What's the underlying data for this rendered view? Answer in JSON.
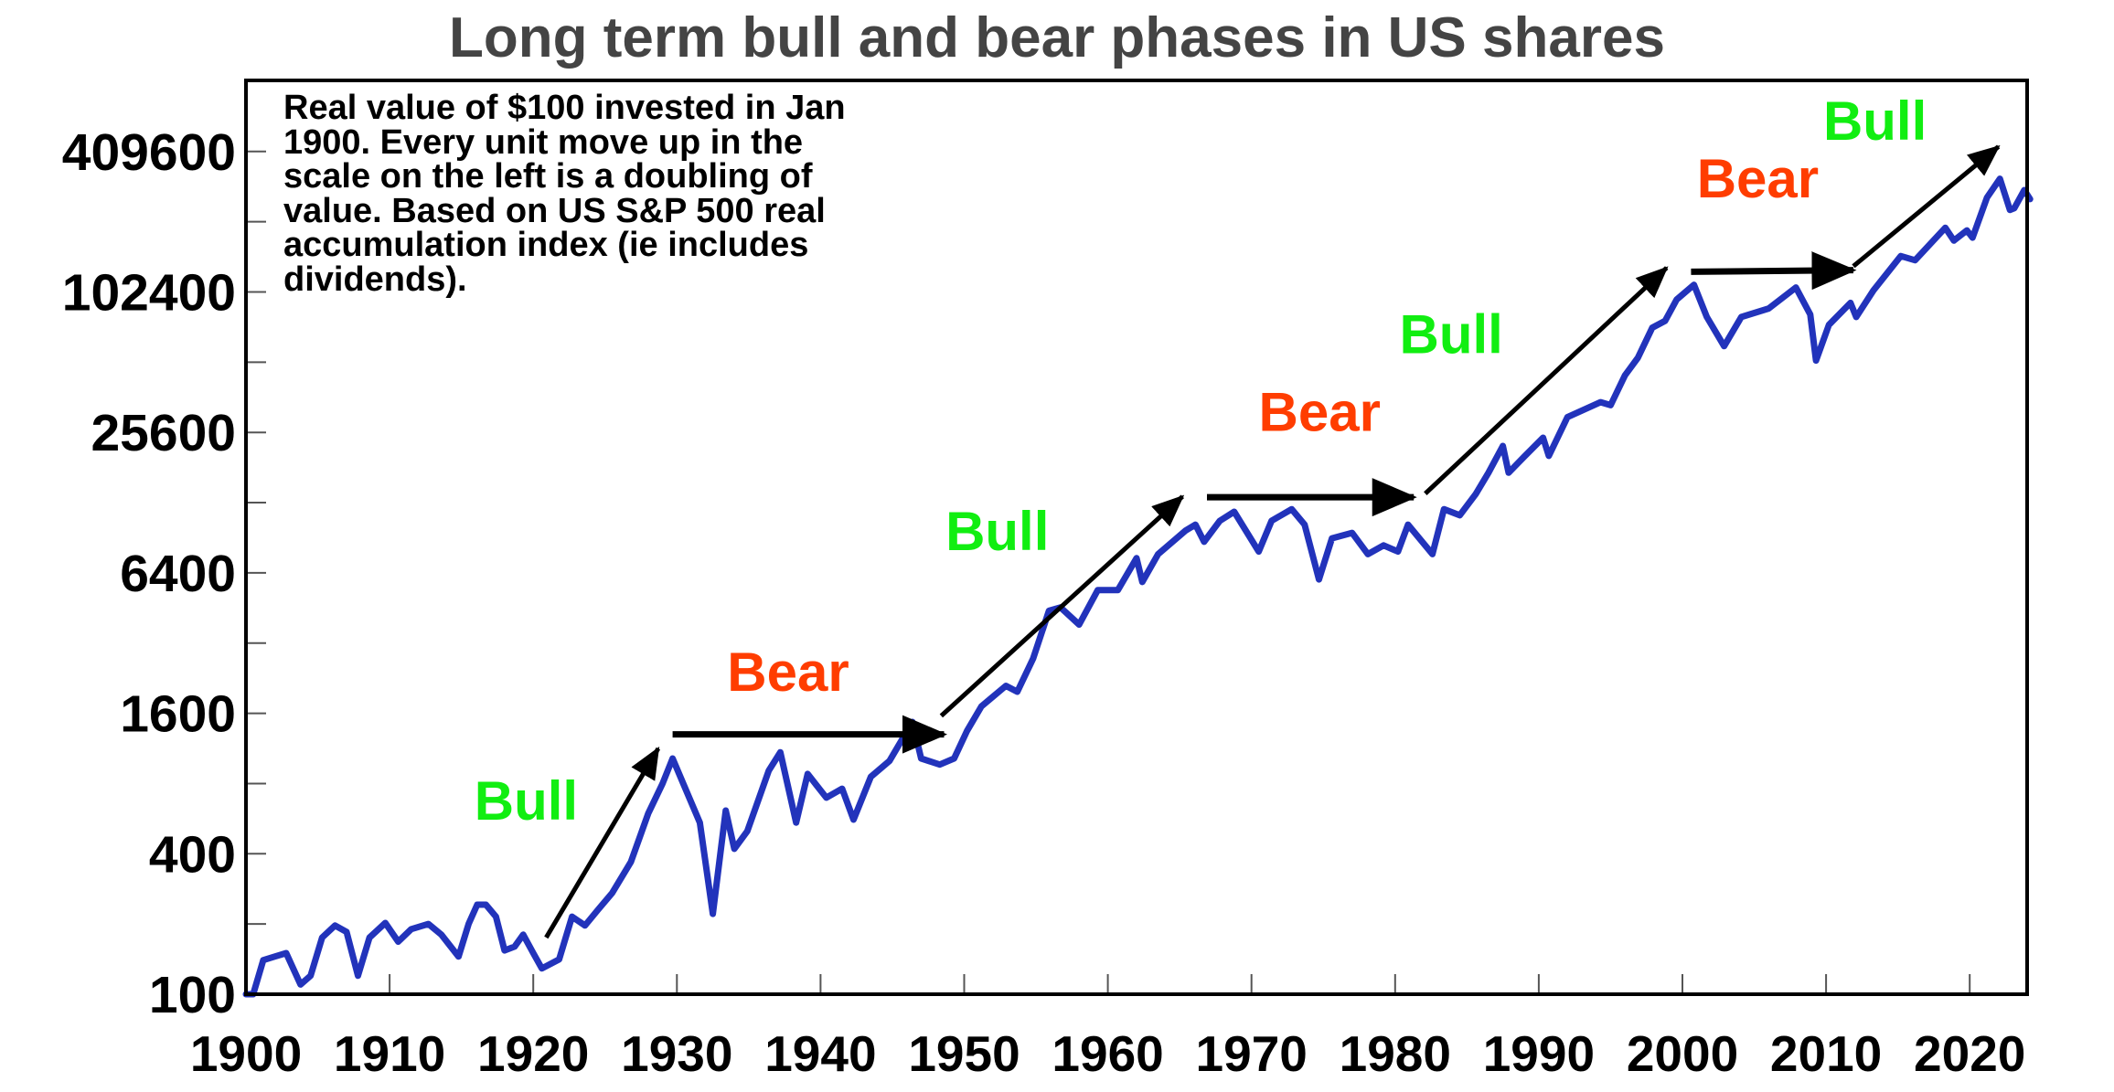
{
  "chart_data": {
    "type": "line",
    "title": "Long term bull and bear phases in US shares",
    "annotation": [
      "Real value of $100 invested in Jan",
      "1900. Every unit move up in the",
      "scale on the left is a doubling of",
      "value. Based on US S&P 500 real",
      "accumulation index (ie includes",
      "dividends)."
    ],
    "xlabel": "",
    "ylabel": "",
    "yscale": "log2",
    "xlim": [
      1900,
      2024.3
    ],
    "ylim": [
      100,
      819200
    ],
    "grid": false,
    "legend": null,
    "x_ticks": [
      "1900",
      "1910",
      "1920",
      "1930",
      "1940",
      "1950",
      "1960",
      "1970",
      "1980",
      "1990",
      "2000",
      "2010",
      "2020"
    ],
    "y_ticks_labeled": [
      "100",
      "400",
      "1600",
      "6400",
      "25600",
      "102400",
      "409600"
    ],
    "y_ticks_minor": [
      200,
      800,
      3200,
      12800,
      51200,
      204800
    ],
    "series": [
      {
        "name": "Real value of $100 invested in Jan 1900 (S&P 500 real accumulation index)",
        "color": "#2233bb",
        "x": [
          1900.0,
          1900.5,
          1901.2,
          1902.0,
          1902.8,
          1903.8,
          1904.5,
          1905.3,
          1906.2,
          1907.0,
          1907.8,
          1908.6,
          1909.7,
          1910.6,
          1911.5,
          1912.7,
          1913.6,
          1914.8,
          1915.5,
          1916.1,
          1916.7,
          1917.4,
          1918.0,
          1918.7,
          1919.3,
          1920.0,
          1920.6,
          1921.8,
          1922.7,
          1923.6,
          1924.5,
          1925.5,
          1926.8,
          1928.0,
          1929.0,
          1929.7,
          1930.5,
          1931.6,
          1932.5,
          1933.4,
          1934.0,
          1934.9,
          1936.4,
          1937.2,
          1938.3,
          1939.1,
          1940.4,
          1941.5,
          1942.3,
          1943.5,
          1944.8,
          1946.4,
          1947.0,
          1948.3,
          1949.3,
          1950.2,
          1951.2,
          1952.9,
          1953.7,
          1954.8,
          1955.9,
          1956.7,
          1958.0,
          1959.3,
          1960.7,
          1962.0,
          1962.4,
          1963.5,
          1965.4,
          1966.1,
          1966.7,
          1967.8,
          1968.8,
          1970.5,
          1971.4,
          1972.8,
          1973.7,
          1974.7,
          1975.6,
          1977.0,
          1978.1,
          1979.2,
          1980.2,
          1980.9,
          1982.6,
          1983.4,
          1984.5,
          1985.6,
          1986.5,
          1987.5,
          1987.9,
          1989.0,
          1990.3,
          1990.7,
          1992.0,
          1994.3,
          1995.0,
          1996.0,
          1996.9,
          1997.9,
          1998.8,
          1999.6,
          2000.8,
          2001.7,
          2002.9,
          2004.1,
          2006.0,
          2007.9,
          2008.9,
          2009.3,
          2010.2,
          2011.7,
          2012.1,
          2013.3,
          2015.2,
          2016.2,
          2018.3,
          2018.9,
          2019.8,
          2020.2,
          2021.2,
          2022.1,
          2022.8,
          2023.1,
          2023.8,
          2024.2
        ],
        "values": [
          100,
          98,
          140,
          145,
          150,
          110,
          120,
          175,
          197,
          185,
          120,
          175,
          202,
          168,
          190,
          200,
          180,
          145,
          200,
          242,
          242,
          215,
          154,
          160,
          180,
          150,
          129,
          141,
          215,
          197,
          230,
          272,
          369,
          595,
          800,
          1025,
          783,
          544,
          221,
          613,
          420,
          500,
          910,
          1090,
          544,
          880,
          696,
          760,
          560,
          855,
          1000,
          1470,
          1025,
          965,
          1025,
          1345,
          1715,
          2100,
          1980,
          2750,
          4400,
          4550,
          3840,
          5400,
          5400,
          7400,
          5850,
          7700,
          9700,
          10300,
          8700,
          10700,
          11700,
          7900,
          10700,
          12000,
          10300,
          6000,
          9000,
          9500,
          7700,
          8400,
          7900,
          10300,
          7700,
          12000,
          11300,
          13900,
          17200,
          22400,
          17200,
          20200,
          24300,
          20300,
          29800,
          34500,
          33500,
          45000,
          53500,
          72000,
          77000,
          95000,
          110000,
          80000,
          60000,
          80000,
          87000,
          107000,
          82000,
          52000,
          74000,
          92000,
          80000,
          104000,
          146000,
          140000,
          193000,
          170000,
          188000,
          175000,
          260000,
          313000,
          230000,
          234000,
          280000,
          256000
        ]
      }
    ],
    "phases": [
      {
        "label": "Bull",
        "type": "bull",
        "start_year": 1920.9,
        "end_year": 1928.7,
        "arrow_from": [
          1920.9,
          175
        ],
        "arrow_to": [
          1928.7,
          1130
        ],
        "label_pos": [
          1915.9,
          560
        ]
      },
      {
        "label": "Bear",
        "type": "bear",
        "start_year": 1929.7,
        "end_year": 1948.6,
        "arrow_from": [
          1929.7,
          1300
        ],
        "arrow_to": [
          1948.6,
          1300
        ],
        "label_pos": [
          1933.5,
          2000
        ]
      },
      {
        "label": "Bull",
        "type": "bull",
        "start_year": 1948.4,
        "end_year": 1965.2,
        "arrow_from": [
          1948.4,
          1560
        ],
        "arrow_to": [
          1965.2,
          13600
        ],
        "label_pos": [
          1948.7,
          8000
        ]
      },
      {
        "label": "Bear",
        "type": "bear",
        "start_year": 1966.9,
        "end_year": 1981.3,
        "arrow_from": [
          1966.9,
          13500
        ],
        "arrow_to": [
          1981.3,
          13500
        ],
        "label_pos": [
          1970.5,
          26000
        ]
      },
      {
        "label": "Bull",
        "type": "bull",
        "start_year": 1982.1,
        "end_year": 1998.9,
        "arrow_from": [
          1982.1,
          14000
        ],
        "arrow_to": [
          1998.9,
          130000
        ],
        "label_pos": [
          1980.3,
          56000
        ]
      },
      {
        "label": "Bear",
        "type": "bear",
        "start_year": 2000.6,
        "end_year": 2011.9,
        "arrow_from": [
          2000.6,
          125000
        ],
        "arrow_to": [
          2011.9,
          127000
        ],
        "label_pos": [
          2001.0,
          260000
        ]
      },
      {
        "label": "Bull",
        "type": "bull",
        "start_year": 2011.9,
        "end_year": 2022.0,
        "arrow_from": [
          2011.9,
          132000
        ],
        "arrow_to": [
          2022.0,
          430000
        ],
        "label_pos": [
          2009.8,
          460000
        ]
      }
    ],
    "colors": {
      "line": "#2233bb",
      "bull": "#11ee11",
      "bear": "#ff3d00",
      "arrow": "#000000",
      "title": "#444444",
      "axis": "#000000"
    }
  }
}
